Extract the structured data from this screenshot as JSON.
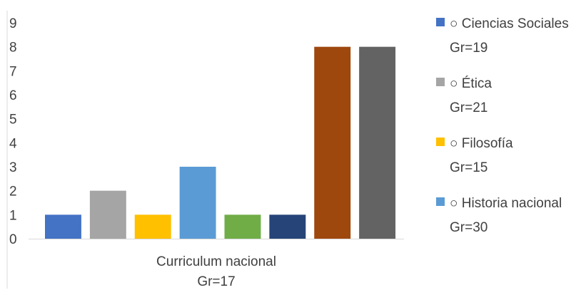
{
  "chart_data": {
    "type": "bar",
    "categories": [
      "Curriculum nacional\nGr=17"
    ],
    "series": [
      {
        "name": "○ Ciencias Sociales\nGr=19",
        "values": [
          1
        ],
        "color": "#4472C4"
      },
      {
        "name": "○ Ética\nGr=21",
        "values": [
          2
        ],
        "color": "#A5A5A5"
      },
      {
        "name": "○ Filosofía\nGr=15",
        "values": [
          1
        ],
        "color": "#FFC000"
      },
      {
        "name": "○ Historia nacional\nGr=30",
        "values": [
          3
        ],
        "color": "#5B9BD5"
      },
      {
        "values": [
          1
        ],
        "color": "#70AD47"
      },
      {
        "values": [
          1
        ],
        "color": "#264478"
      },
      {
        "values": [
          8
        ],
        "color": "#9E480E"
      },
      {
        "values": [
          8
        ],
        "color": "#636363"
      }
    ],
    "ylim": [
      0,
      9
    ],
    "yticks": [
      0,
      1,
      2,
      3,
      4,
      5,
      6,
      7,
      8,
      9
    ],
    "grid": false,
    "legend_position": "right"
  }
}
